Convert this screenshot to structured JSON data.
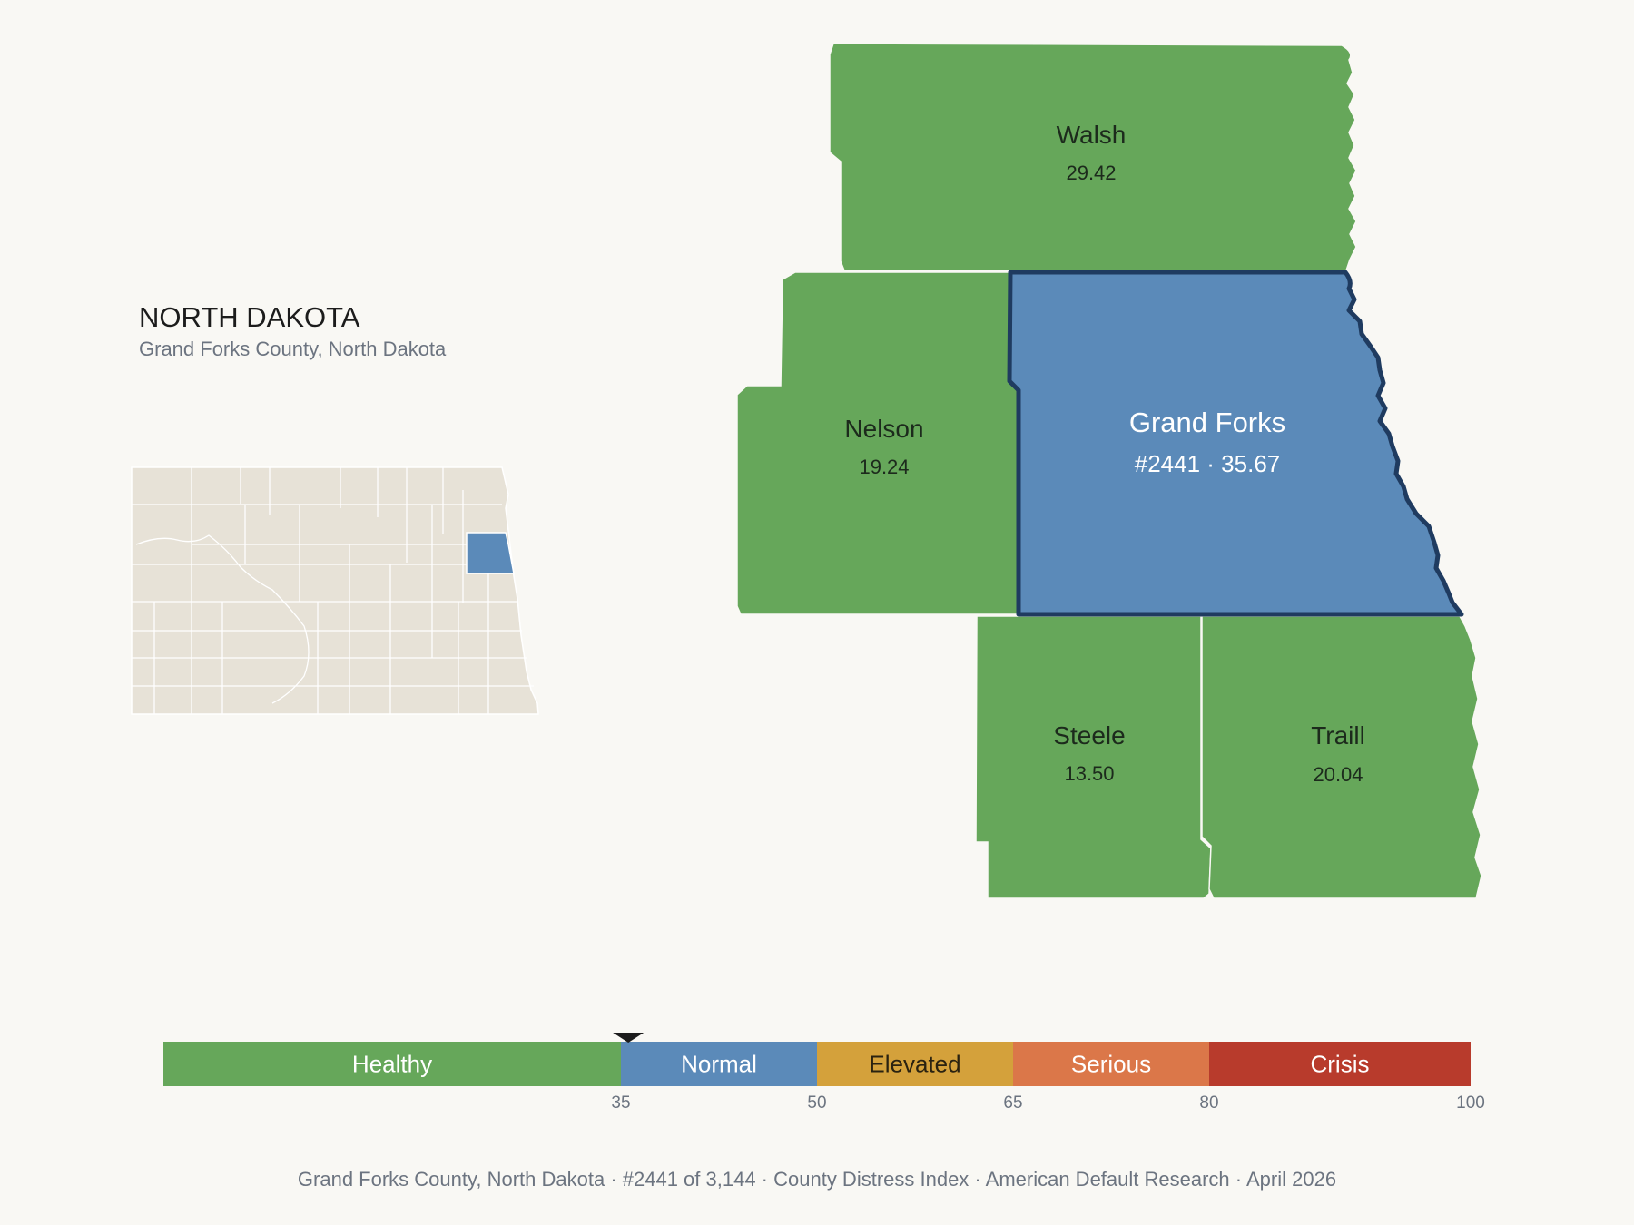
{
  "header": {
    "state_title": "NORTH DAKOTA",
    "subtitle": "Grand Forks County, North Dakota"
  },
  "counties": [
    {
      "name": "Walsh",
      "value": "29.42",
      "color": "#66a75a"
    },
    {
      "name": "Nelson",
      "value": "19.24",
      "color": "#66a75a"
    },
    {
      "name": "Grand Forks",
      "value": "#2441 · 35.67",
      "color": "#5b8ab9",
      "selected": true
    },
    {
      "name": "Steele",
      "value": "13.50",
      "color": "#66a75a"
    },
    {
      "name": "Traill",
      "value": "20.04",
      "color": "#66a75a"
    }
  ],
  "scale": {
    "marker_value": 35.67,
    "segments": [
      {
        "label": "Healthy",
        "from": 0,
        "to": 35,
        "color": "#66a75a",
        "text_color": "#ffffff"
      },
      {
        "label": "Normal",
        "from": 35,
        "to": 50,
        "color": "#5b8ab9",
        "text_color": "#ffffff"
      },
      {
        "label": "Elevated",
        "from": 50,
        "to": 65,
        "color": "#d4a13b",
        "text_color": "#2a2210"
      },
      {
        "label": "Serious",
        "from": 65,
        "to": 80,
        "color": "#db7749",
        "text_color": "#ffffff"
      },
      {
        "label": "Crisis",
        "from": 80,
        "to": 100,
        "color": "#b83b2c",
        "text_color": "#ffffff"
      }
    ],
    "ticks": [
      "35",
      "50",
      "65",
      "80",
      "100"
    ]
  },
  "footer": {
    "text": "Grand Forks County, North Dakota  ·  #2441 of 3,144  ·  County Distress Index  ·  American Default Research  ·  April 2026"
  }
}
